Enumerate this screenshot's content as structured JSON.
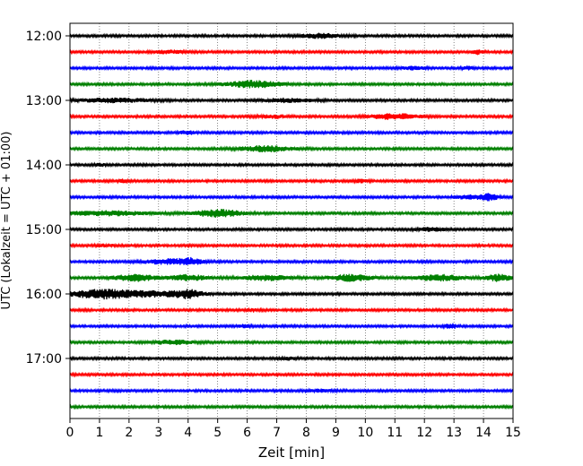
{
  "chart_data": {
    "type": "line",
    "title": "",
    "xlabel": "Zeit  [min]",
    "ylabel": "UTC (Lokalzeit = UTC + 01:00)",
    "xlim": [
      0,
      15
    ],
    "x_ticks": [
      0,
      1,
      2,
      3,
      4,
      5,
      6,
      7,
      8,
      9,
      10,
      11,
      12,
      13,
      14,
      15
    ],
    "x_grid": "dotted-vertical",
    "y_ticks": [
      {
        "label": "12:00",
        "trace_index": 0
      },
      {
        "label": "13:00",
        "trace_index": 4
      },
      {
        "label": "14:00",
        "trace_index": 8
      },
      {
        "label": "15:00",
        "trace_index": 12
      },
      {
        "label": "16:00",
        "trace_index": 16
      },
      {
        "label": "17:00",
        "trace_index": 20
      }
    ],
    "trace_interval_minutes": 15,
    "start_time": "12:00",
    "color_cycle": [
      "#000000",
      "#ff0000",
      "#0000ff",
      "#008000"
    ],
    "series": [
      {
        "start": "12:00",
        "color": "#000000",
        "events": [
          [
            8.5,
            2.2,
            0.7
          ]
        ]
      },
      {
        "start": "12:15",
        "color": "#ff0000",
        "events": [
          [
            3.4,
            1.4,
            0.6
          ],
          [
            13.8,
            2.6,
            0.15
          ]
        ]
      },
      {
        "start": "12:30",
        "color": "#0000ff",
        "events": [
          [
            11.6,
            1.6,
            0.4
          ],
          [
            13.5,
            1.4,
            0.2
          ]
        ]
      },
      {
        "start": "12:45",
        "color": "#008000",
        "events": [
          [
            6.2,
            3.6,
            0.9
          ]
        ]
      },
      {
        "start": "13:00",
        "color": "#000000",
        "events": [
          [
            1.5,
            2.0,
            1.2
          ],
          [
            7.3,
            1.8,
            0.9
          ]
        ]
      },
      {
        "start": "13:15",
        "color": "#ff0000",
        "events": [
          [
            6.9,
            1.4,
            0.5
          ],
          [
            11.0,
            2.8,
            0.8
          ]
        ]
      },
      {
        "start": "13:30",
        "color": "#0000ff",
        "events": [
          [
            4.0,
            1.6,
            0.3
          ]
        ]
      },
      {
        "start": "13:45",
        "color": "#008000",
        "events": [
          [
            6.6,
            2.8,
            0.9
          ]
        ]
      },
      {
        "start": "14:00",
        "color": "#000000",
        "events": [
          [
            1.0,
            1.2,
            0.2
          ]
        ]
      },
      {
        "start": "14:15",
        "color": "#ff0000",
        "events": [
          [
            1.8,
            1.4,
            0.2
          ],
          [
            9.8,
            1.4,
            0.3
          ]
        ]
      },
      {
        "start": "14:30",
        "color": "#0000ff",
        "events": [
          [
            13.5,
            2.0,
            0.4
          ],
          [
            14.2,
            3.4,
            0.3
          ]
        ]
      },
      {
        "start": "14:45",
        "color": "#008000",
        "events": [
          [
            1.2,
            2.2,
            1.4
          ],
          [
            5.0,
            3.8,
            0.8
          ]
        ]
      },
      {
        "start": "15:00",
        "color": "#000000",
        "events": [
          [
            12.2,
            1.6,
            0.5
          ]
        ]
      },
      {
        "start": "15:15",
        "color": "#ff0000",
        "events": [
          [
            1.2,
            1.2,
            0.3
          ]
        ]
      },
      {
        "start": "15:30",
        "color": "#0000ff",
        "events": [
          [
            3.4,
            2.6,
            0.9
          ],
          [
            4.1,
            2.4,
            0.3
          ]
        ]
      },
      {
        "start": "15:45",
        "color": "#008000",
        "events": [
          [
            2.2,
            3.4,
            0.7
          ],
          [
            4.0,
            3.0,
            0.6
          ],
          [
            6.6,
            2.6,
            0.8
          ],
          [
            9.5,
            3.4,
            0.7
          ],
          [
            12.5,
            3.0,
            0.8
          ],
          [
            14.5,
            3.6,
            0.4
          ]
        ]
      },
      {
        "start": "16:00",
        "color": "#000000",
        "events": [
          [
            1.0,
            4.8,
            0.9
          ],
          [
            4.0,
            4.2,
            0.5
          ],
          [
            2.6,
            3.0,
            1.0
          ]
        ]
      },
      {
        "start": "16:15",
        "color": "#ff0000",
        "events": [
          [
            6.2,
            1.4,
            0.2
          ]
        ]
      },
      {
        "start": "16:30",
        "color": "#0000ff",
        "events": [
          [
            5.9,
            1.4,
            0.2
          ],
          [
            12.9,
            2.6,
            0.2
          ]
        ]
      },
      {
        "start": "16:45",
        "color": "#008000",
        "events": [
          [
            3.5,
            2.0,
            0.7
          ]
        ]
      },
      {
        "start": "17:00",
        "color": "#000000",
        "events": [
          [
            7.4,
            1.2,
            0.3
          ]
        ]
      },
      {
        "start": "17:15",
        "color": "#ff0000",
        "events": []
      },
      {
        "start": "17:30",
        "color": "#0000ff",
        "events": [
          [
            8.5,
            1.2,
            0.4
          ]
        ]
      },
      {
        "start": "17:45",
        "color": "#008000",
        "events": []
      }
    ]
  }
}
